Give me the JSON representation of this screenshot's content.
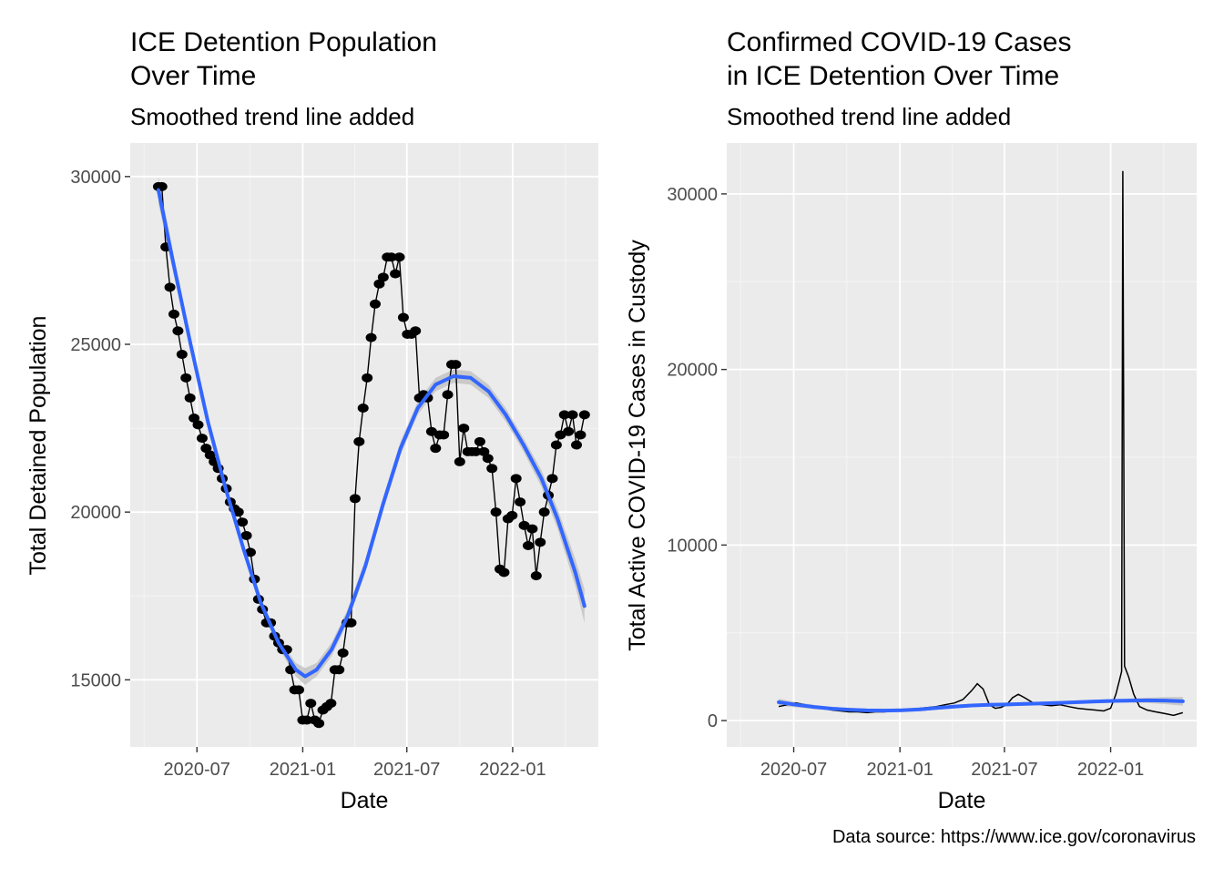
{
  "caption": "Data source: https://www.ice.gov/coronavirus",
  "chart_data": [
    {
      "type": "line",
      "title_lines": [
        "ICE Detention Population",
        "Over Time"
      ],
      "subtitle": "Smoothed trend line added",
      "xlabel": "Date",
      "ylabel": "Total Detained Population",
      "x_ticks": [
        "2020-07",
        "2021-01",
        "2021-07",
        "2022-01"
      ],
      "y_ticks": [
        15000,
        20000,
        25000,
        30000
      ],
      "y_tick_labels": [
        "15000",
        "20000",
        "25000",
        "30000"
      ],
      "xlim": [
        "2020-03-07",
        "2022-05-30"
      ],
      "ylim": [
        13000,
        31000
      ],
      "grid": true,
      "panel_background": "#ebebeb",
      "points_series": {
        "name": "Total Detained Population",
        "color": "#000000",
        "x": [
          "2020-04-25",
          "2020-05-01",
          "2020-05-08",
          "2020-05-15",
          "2020-05-22",
          "2020-05-29",
          "2020-06-05",
          "2020-06-12",
          "2020-06-19",
          "2020-06-26",
          "2020-07-03",
          "2020-07-10",
          "2020-07-17",
          "2020-07-24",
          "2020-07-31",
          "2020-08-07",
          "2020-08-14",
          "2020-08-21",
          "2020-08-28",
          "2020-09-04",
          "2020-09-11",
          "2020-09-18",
          "2020-09-25",
          "2020-10-02",
          "2020-10-09",
          "2020-10-16",
          "2020-10-23",
          "2020-10-30",
          "2020-11-06",
          "2020-11-13",
          "2020-11-20",
          "2020-11-27",
          "2020-12-04",
          "2020-12-11",
          "2020-12-18",
          "2020-12-25",
          "2021-01-01",
          "2021-01-08",
          "2021-01-15",
          "2021-01-22",
          "2021-01-29",
          "2021-02-05",
          "2021-02-12",
          "2021-02-19",
          "2021-02-26",
          "2021-03-05",
          "2021-03-12",
          "2021-03-19",
          "2021-03-26",
          "2021-04-02",
          "2021-04-09",
          "2021-04-16",
          "2021-04-23",
          "2021-04-30",
          "2021-05-07",
          "2021-05-14",
          "2021-05-21",
          "2021-05-28",
          "2021-06-04",
          "2021-06-11",
          "2021-06-18",
          "2021-06-25",
          "2021-07-02",
          "2021-07-09",
          "2021-07-16",
          "2021-07-23",
          "2021-07-30",
          "2021-08-06",
          "2021-08-13",
          "2021-08-20",
          "2021-08-27",
          "2021-09-03",
          "2021-09-10",
          "2021-09-17",
          "2021-09-24",
          "2021-10-01",
          "2021-10-08",
          "2021-10-15",
          "2021-10-22",
          "2021-10-29",
          "2021-11-05",
          "2021-11-12",
          "2021-11-19",
          "2021-11-26",
          "2021-12-03",
          "2021-12-10",
          "2021-12-17",
          "2021-12-24",
          "2021-12-31",
          "2022-01-07",
          "2022-01-14",
          "2022-01-21",
          "2022-01-28",
          "2022-02-04",
          "2022-02-11",
          "2022-02-18",
          "2022-02-25",
          "2022-03-04",
          "2022-03-11",
          "2022-03-18",
          "2022-03-25",
          "2022-04-01",
          "2022-04-08",
          "2022-04-15",
          "2022-04-22",
          "2022-04-29",
          "2022-05-06"
        ],
        "y": [
          29700,
          29700,
          27900,
          26700,
          25900,
          25400,
          24700,
          24000,
          23400,
          22800,
          22600,
          22200,
          21900,
          21700,
          21500,
          21300,
          21000,
          20700,
          20300,
          20100,
          20000,
          19700,
          19300,
          18800,
          18000,
          17400,
          17100,
          16700,
          16700,
          16300,
          16100,
          15900,
          15900,
          15300,
          14700,
          14700,
          13800,
          13800,
          14300,
          13800,
          13700,
          14100,
          14200,
          14300,
          15300,
          15300,
          15800,
          16700,
          16700,
          20400,
          22100,
          23100,
          24000,
          25200,
          26200,
          26800,
          27000,
          27600,
          27600,
          27100,
          27600,
          25800,
          25300,
          25300,
          25400,
          23400,
          23500,
          23400,
          22400,
          21900,
          22300,
          22300,
          23500,
          24400,
          24400,
          21500,
          22500,
          21800,
          21800,
          21800,
          22100,
          21800,
          21600,
          21300,
          20000,
          18300,
          18200,
          19800,
          19900,
          21000,
          20300,
          19600,
          19000,
          19500,
          18100,
          19100,
          20000,
          20500,
          21000,
          22000,
          22300,
          22900,
          22400,
          22900,
          22000,
          22300,
          22900
        ]
      },
      "trend_series": {
        "name": "Smoothed trend",
        "color": "#3366ff",
        "ci_color": "#bdbdbd",
        "x": [
          "2020-04-25",
          "2020-05-20",
          "2020-06-20",
          "2020-07-20",
          "2020-08-20",
          "2020-09-20",
          "2020-10-20",
          "2020-11-20",
          "2020-12-20",
          "2021-01-05",
          "2021-01-25",
          "2021-02-20",
          "2021-03-20",
          "2021-04-20",
          "2021-05-20",
          "2021-06-20",
          "2021-07-20",
          "2021-08-20",
          "2021-09-20",
          "2021-10-20",
          "2021-11-20",
          "2021-12-20",
          "2022-01-20",
          "2022-02-20",
          "2022-03-20",
          "2022-04-20",
          "2022-05-06"
        ],
        "y": [
          29600,
          27500,
          25000,
          22700,
          20700,
          18900,
          17300,
          16100,
          15300,
          15100,
          15300,
          15900,
          16900,
          18400,
          20200,
          21900,
          23100,
          23800,
          24050,
          24000,
          23600,
          22900,
          22000,
          21000,
          19800,
          18200,
          17200
        ],
        "ci_halfwidth": [
          400,
          300,
          200,
          150,
          150,
          150,
          150,
          150,
          200,
          250,
          200,
          200,
          200,
          200,
          200,
          200,
          200,
          200,
          200,
          200,
          200,
          200,
          200,
          250,
          300,
          400,
          500
        ]
      }
    },
    {
      "type": "line",
      "title_lines": [
        "Confirmed COVID-19 Cases",
        "in ICE Detention Over Time"
      ],
      "subtitle": "Smoothed trend line added",
      "xlabel": "Date",
      "ylabel": "Total Active COVID-19 Cases in Custody",
      "x_ticks": [
        "2020-07",
        "2021-01",
        "2021-07",
        "2022-01"
      ],
      "y_ticks": [
        0,
        10000,
        20000,
        30000
      ],
      "y_tick_labels": [
        "0",
        "10000",
        "20000",
        "30000"
      ],
      "xlim": [
        "2020-03-07",
        "2022-05-30"
      ],
      "ylim": [
        -1500,
        32900
      ],
      "grid": true,
      "panel_background": "#ebebeb",
      "line_series": {
        "name": "Total Active COVID-19 Cases in Custody",
        "color": "#000000",
        "x": [
          "2020-06-05",
          "2020-06-20",
          "2020-07-05",
          "2020-07-20",
          "2020-08-05",
          "2020-08-20",
          "2020-09-05",
          "2020-09-20",
          "2020-10-05",
          "2020-10-20",
          "2020-11-05",
          "2020-11-20",
          "2020-12-05",
          "2020-12-20",
          "2021-01-05",
          "2021-01-20",
          "2021-02-05",
          "2021-02-20",
          "2021-03-05",
          "2021-03-20",
          "2021-04-05",
          "2021-04-20",
          "2021-05-05",
          "2021-05-15",
          "2021-05-25",
          "2021-06-05",
          "2021-06-15",
          "2021-06-25",
          "2021-07-05",
          "2021-07-15",
          "2021-07-25",
          "2021-08-05",
          "2021-08-20",
          "2021-09-05",
          "2021-09-20",
          "2021-10-05",
          "2021-10-20",
          "2021-11-05",
          "2021-11-20",
          "2021-12-05",
          "2021-12-20",
          "2022-01-01",
          "2022-01-10",
          "2022-01-17",
          "2022-01-20",
          "2022-01-22",
          "2022-01-25",
          "2022-02-01",
          "2022-02-10",
          "2022-02-20",
          "2022-03-05",
          "2022-03-20",
          "2022-04-05",
          "2022-04-20",
          "2022-05-06"
        ],
        "y": [
          800,
          900,
          1000,
          900,
          800,
          700,
          600,
          550,
          500,
          500,
          450,
          500,
          500,
          550,
          600,
          650,
          700,
          750,
          800,
          900,
          1000,
          1200,
          1700,
          2100,
          1800,
          900,
          700,
          750,
          900,
          1300,
          1500,
          1300,
          1000,
          900,
          850,
          900,
          800,
          700,
          650,
          600,
          550,
          700,
          1500,
          2400,
          2800,
          31300,
          3100,
          2500,
          1500,
          800,
          600,
          500,
          400,
          300,
          450
        ]
      },
      "trend_series": {
        "name": "Smoothed trend",
        "color": "#3366ff",
        "ci_color": "#bdbdbd",
        "x": [
          "2020-06-05",
          "2020-07-05",
          "2020-08-05",
          "2020-09-05",
          "2020-10-05",
          "2020-11-05",
          "2020-12-05",
          "2021-01-05",
          "2021-02-05",
          "2021-03-05",
          "2021-04-05",
          "2021-05-05",
          "2021-06-05",
          "2021-07-05",
          "2021-08-05",
          "2021-09-05",
          "2021-10-05",
          "2021-11-05",
          "2021-12-05",
          "2022-01-05",
          "2022-02-05",
          "2022-03-05",
          "2022-04-05",
          "2022-05-06"
        ],
        "y": [
          1050,
          900,
          780,
          680,
          620,
          580,
          570,
          590,
          640,
          720,
          800,
          860,
          900,
          920,
          950,
          980,
          1010,
          1050,
          1090,
          1120,
          1140,
          1150,
          1140,
          1100
        ],
        "ci_halfwidth": [
          200,
          150,
          120,
          100,
          100,
          100,
          100,
          100,
          100,
          100,
          100,
          100,
          100,
          100,
          100,
          100,
          100,
          100,
          100,
          110,
          120,
          150,
          200,
          250
        ]
      }
    }
  ]
}
